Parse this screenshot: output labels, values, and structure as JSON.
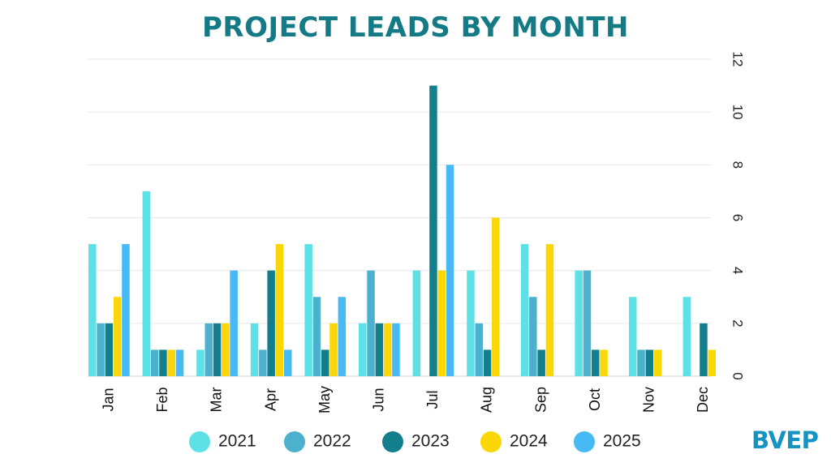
{
  "chart_data": {
    "type": "bar",
    "title": "PROJECT LEADS BY MONTH",
    "xlabel": "",
    "ylabel": "",
    "ylim": [
      0,
      12
    ],
    "yticks": [
      0,
      2,
      4,
      6,
      8,
      10,
      12
    ],
    "y_axis_position": "right",
    "grid": true,
    "legend_position": "bottom",
    "categories": [
      "Jan",
      "Feb",
      "Mar",
      "Apr",
      "May",
      "Jun",
      "Jul",
      "Aug",
      "Sep",
      "Oct",
      "Nov",
      "Dec"
    ],
    "series": [
      {
        "name": "2021",
        "color": "#5ee1e6",
        "values": [
          5,
          7,
          1,
          2,
          5,
          2,
          4,
          4,
          5,
          4,
          3,
          3
        ]
      },
      {
        "name": "2022",
        "color": "#4bb1cd",
        "values": [
          2,
          1,
          2,
          1,
          3,
          4,
          0,
          2,
          3,
          4,
          1,
          0
        ]
      },
      {
        "name": "2023",
        "color": "#137f8c",
        "values": [
          2,
          1,
          2,
          4,
          1,
          2,
          11,
          1,
          1,
          1,
          1,
          2
        ]
      },
      {
        "name": "2024",
        "color": "#fcd707",
        "values": [
          3,
          1,
          2,
          5,
          2,
          2,
          4,
          6,
          5,
          1,
          1,
          1
        ]
      },
      {
        "name": "2025",
        "color": "#47b9f5",
        "values": [
          5,
          1,
          4,
          1,
          3,
          2,
          8,
          0,
          0,
          0,
          0,
          0
        ]
      }
    ]
  },
  "brand": {
    "logo_text": "BVEP",
    "color": "#1793c2"
  }
}
